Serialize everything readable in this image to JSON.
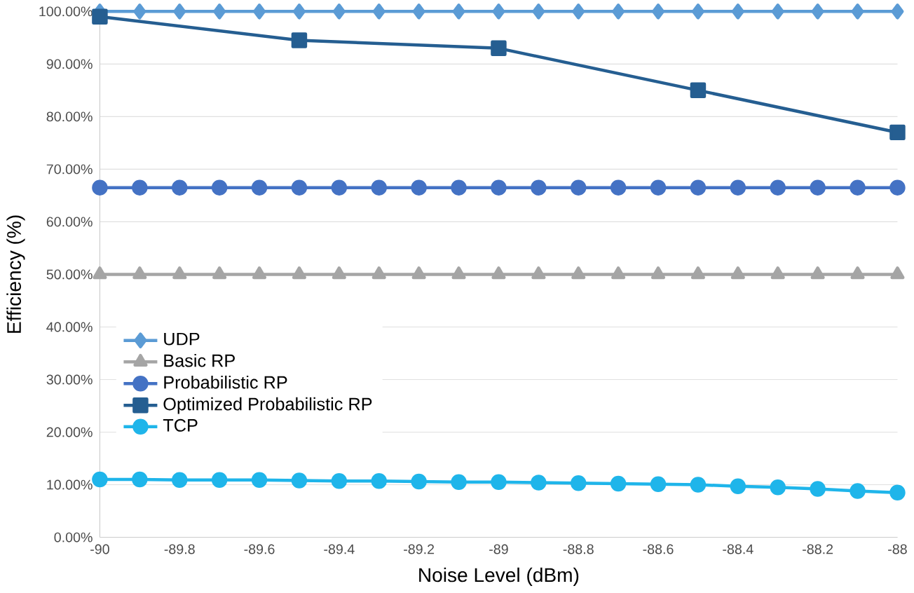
{
  "chart_data": {
    "type": "line",
    "xlabel": "Noise Level (dBm)",
    "ylabel": "Efficiency (%)",
    "x": [
      -90,
      -89.9,
      -89.8,
      -89.7,
      -89.6,
      -89.5,
      -89.4,
      -89.3,
      -89.2,
      -89.1,
      -89,
      -88.9,
      -88.8,
      -88.7,
      -88.6,
      -88.5,
      -88.4,
      -88.3,
      -88.2,
      -88.1,
      -88
    ],
    "series": [
      {
        "name": "UDP",
        "color": "#5b9bd5",
        "marker": "diamond",
        "values": [
          100,
          100,
          100,
          100,
          100,
          100,
          100,
          100,
          100,
          100,
          100,
          100,
          100,
          100,
          100,
          100,
          100,
          100,
          100,
          100,
          100
        ]
      },
      {
        "name": "Basic RP",
        "color": "#a5a5a5",
        "marker": "triangle",
        "values": [
          50,
          50,
          50,
          50,
          50,
          50,
          50,
          50,
          50,
          50,
          50,
          50,
          50,
          50,
          50,
          50,
          50,
          50,
          50,
          50,
          50
        ]
      },
      {
        "name": "Probabilistic RP",
        "color": "#4472c4",
        "marker": "circle",
        "values": [
          66.5,
          66.5,
          66.5,
          66.5,
          66.5,
          66.5,
          66.5,
          66.5,
          66.5,
          66.5,
          66.5,
          66.5,
          66.5,
          66.5,
          66.5,
          66.5,
          66.5,
          66.5,
          66.5,
          66.5,
          66.5
        ]
      },
      {
        "name": "Optimized Probabilistic RP",
        "color": "#255e91",
        "marker": "square",
        "x": [
          -90,
          -89.5,
          -89,
          -88.5,
          -88
        ],
        "values": [
          99,
          94.5,
          93,
          85,
          77
        ]
      },
      {
        "name": "TCP",
        "color": "#1fb5ea",
        "marker": "circle",
        "values": [
          11.0,
          11.0,
          10.9,
          10.9,
          10.9,
          10.8,
          10.7,
          10.7,
          10.6,
          10.5,
          10.5,
          10.4,
          10.3,
          10.2,
          10.1,
          10.0,
          9.7,
          9.5,
          9.2,
          8.8,
          8.5
        ]
      }
    ],
    "xlim": [
      -90,
      -88
    ],
    "xticks": [
      -90,
      -89.8,
      -89.6,
      -89.4,
      -89.2,
      -89,
      -88.8,
      -88.6,
      -88.4,
      -88.2,
      -88
    ],
    "ylim": [
      0,
      100
    ],
    "yticks": [
      {
        "value": 0,
        "label": "0.00%"
      },
      {
        "value": 10,
        "label": "10.00%"
      },
      {
        "value": 20,
        "label": "20.00%"
      },
      {
        "value": 30,
        "label": "30.00%"
      },
      {
        "value": 40,
        "label": "40.00%"
      },
      {
        "value": 50,
        "label": "50.00%"
      },
      {
        "value": 60,
        "label": "60.00%"
      },
      {
        "value": 70,
        "label": "70.00%"
      },
      {
        "value": 80,
        "label": "80.00%"
      },
      {
        "value": 90,
        "label": "90.00%"
      },
      {
        "value": 100,
        "label": "100.00%"
      }
    ],
    "grid": "y",
    "legend": "left"
  }
}
